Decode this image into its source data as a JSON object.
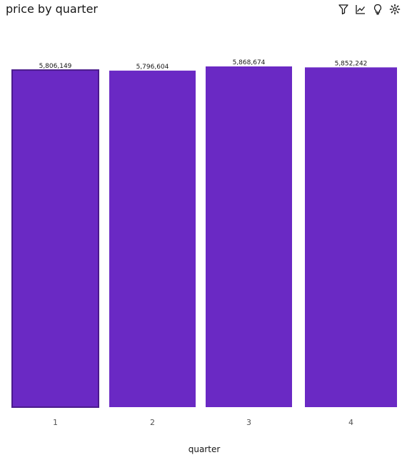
{
  "title": "price by quarter",
  "toolbar": {
    "icons": [
      "filter-icon",
      "trend-line-icon",
      "insight-bulb-icon",
      "settings-gear-icon"
    ]
  },
  "colors": {
    "bar": "#6a29c4",
    "bar_selected_border": "#4a1a8c"
  },
  "chart_data": {
    "type": "bar",
    "categories": [
      "1",
      "2",
      "3",
      "4"
    ],
    "values": [
      5806149,
      5796604,
      5868674,
      5852242
    ],
    "value_labels": [
      "5,806,149",
      "5,796,604",
      "5,868,674",
      "5,852,242"
    ],
    "title": "price by quarter",
    "xlabel": "quarter",
    "ylabel": "",
    "ylim": [
      0,
      5900000
    ],
    "grid": false,
    "legend": "none",
    "selected_index": 0
  }
}
